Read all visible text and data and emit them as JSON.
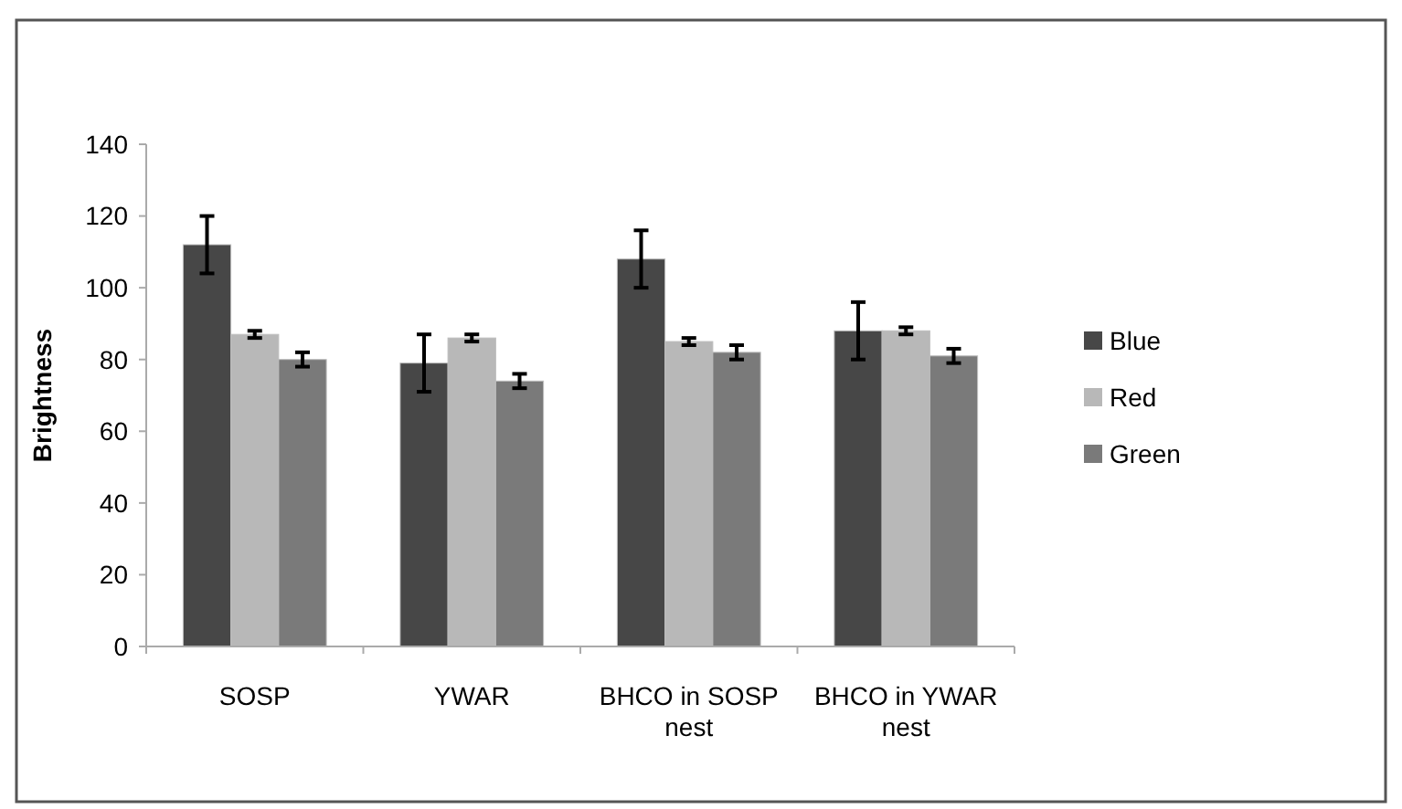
{
  "chart_data": {
    "type": "bar",
    "ylabel": "Brightness",
    "categories": [
      "SOSP",
      "YWAR",
      "BHCO in SOSP nest",
      "BHCO in YWAR nest"
    ],
    "series": [
      {
        "name": "Blue",
        "color": "#474747",
        "values": [
          112,
          79,
          108,
          88
        ],
        "errors": [
          8,
          8,
          8,
          8
        ]
      },
      {
        "name": "Red",
        "color": "#b8b8b8",
        "values": [
          87,
          86,
          85,
          88
        ],
        "errors": [
          1,
          1,
          1,
          1
        ]
      },
      {
        "name": "Green",
        "color": "#7a7a7a",
        "values": [
          80,
          74,
          82,
          81
        ],
        "errors": [
          2,
          2,
          2,
          2
        ]
      }
    ],
    "ylim": [
      0,
      140
    ],
    "yticks": [
      0,
      20,
      40,
      60,
      80,
      100,
      120,
      140
    ],
    "grid": false,
    "legend": "right"
  }
}
